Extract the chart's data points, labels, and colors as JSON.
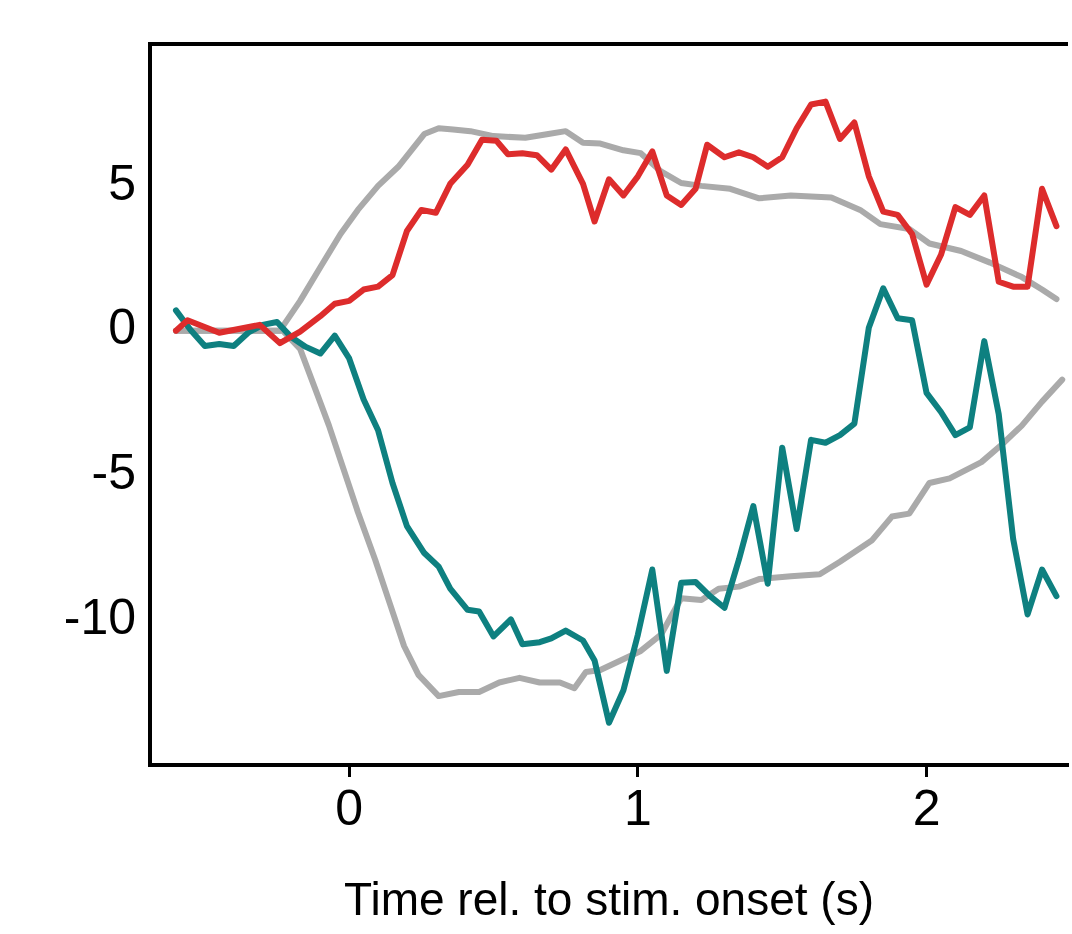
{
  "chart_data": {
    "type": "line",
    "xlabel": "Time rel. to stim. onset (s)",
    "xlim": [
      -0.69,
      2.49
    ],
    "xticks": [
      0,
      1,
      2
    ],
    "ylim": [
      -15,
      9.9
    ],
    "yticks": [
      -10,
      -5,
      0,
      5
    ],
    "grid": false,
    "legend": false,
    "marker": "none",
    "line_style": "solid",
    "series": [
      {
        "color": "#dd2c2c",
        "x": [
          -0.6,
          -0.56,
          -0.45,
          -0.31,
          -0.24,
          -0.17,
          -0.1,
          -0.05,
          0,
          0.05,
          0.1,
          0.15,
          0.2,
          0.25,
          0.3,
          0.35,
          0.41,
          0.46,
          0.51,
          0.55,
          0.6,
          0.65,
          0.7,
          0.75,
          0.81,
          0.85,
          0.9,
          0.95,
          1.0,
          1.05,
          1.1,
          1.15,
          1.2,
          1.24,
          1.3,
          1.35,
          1.4,
          1.45,
          1.5,
          1.55,
          1.6,
          1.65,
          1.7,
          1.75,
          1.8,
          1.85,
          1.9,
          1.95,
          2.0,
          2.05,
          2.1,
          2.15,
          2.2,
          2.25,
          2.3,
          2.35,
          2.4,
          2.45
        ],
        "values": [
          0,
          0.36,
          -0.07,
          0.2,
          -0.43,
          -0.03,
          0.5,
          0.93,
          1.03,
          1.42,
          1.52,
          1.92,
          3.44,
          4.17,
          4.07,
          5.07,
          5.73,
          6.59,
          6.56,
          6.09,
          6.13,
          6.06,
          5.56,
          6.26,
          5.07,
          3.77,
          5.23,
          4.67,
          5.33,
          6.19,
          4.67,
          4.34,
          4.9,
          6.42,
          5.99,
          6.16,
          5.99,
          5.66,
          5.99,
          6.99,
          7.81,
          7.91,
          6.62,
          7.19,
          5.33,
          4.11,
          4.0,
          3.34,
          1.59,
          2.62,
          4.27,
          4.0,
          4.67,
          1.69,
          1.52,
          1.52,
          4.9,
          3.61
        ]
      },
      {
        "color": "#0e8080",
        "x": [
          -0.6,
          -0.55,
          -0.5,
          -0.45,
          -0.4,
          -0.35,
          -0.3,
          -0.25,
          -0.2,
          -0.15,
          -0.1,
          -0.05,
          0,
          0.05,
          0.1,
          0.15,
          0.2,
          0.26,
          0.31,
          0.35,
          0.41,
          0.45,
          0.5,
          0.56,
          0.6,
          0.66,
          0.7,
          0.75,
          0.81,
          0.85,
          0.9,
          0.95,
          1.0,
          1.05,
          1.1,
          1.15,
          1.2,
          1.25,
          1.3,
          1.35,
          1.4,
          1.45,
          1.5,
          1.55,
          1.6,
          1.65,
          1.7,
          1.75,
          1.8,
          1.85,
          1.9,
          1.95,
          2.0,
          2.05,
          2.1,
          2.15,
          2.2,
          2.25,
          2.3,
          2.35,
          2.4,
          2.45
        ],
        "values": [
          0.7,
          0.03,
          -0.53,
          -0.46,
          -0.53,
          -0.07,
          0.2,
          0.3,
          -0.23,
          -0.56,
          -0.79,
          -0.17,
          -0.96,
          -2.38,
          -3.44,
          -5.26,
          -6.75,
          -7.68,
          -8.15,
          -8.91,
          -9.64,
          -9.7,
          -10.56,
          -9.97,
          -10.83,
          -10.76,
          -10.63,
          -10.36,
          -10.7,
          -11.39,
          -13.54,
          -12.42,
          -10.5,
          -8.25,
          -11.75,
          -8.71,
          -8.68,
          -9.17,
          -9.57,
          -7.91,
          -6.06,
          -8.74,
          -4.04,
          -6.85,
          -3.77,
          -3.87,
          -3.61,
          -3.21,
          0.1,
          1.46,
          0.43,
          0.36,
          -2.15,
          -2.81,
          -3.61,
          -3.34,
          -0.36,
          -2.88,
          -7.19,
          -9.8,
          -8.25,
          -9.17
        ]
      },
      {
        "color": "#aaaaaa",
        "x": [
          -0.6,
          -0.24,
          -0.17,
          -0.1,
          -0.03,
          0.03,
          0.1,
          0.17,
          0.26,
          0.31,
          0.36,
          0.42,
          0.5,
          0.61,
          0.69,
          0.75,
          0.81,
          0.87,
          0.95,
          1.01,
          1.08,
          1.15,
          1.22,
          1.32,
          1.42,
          1.53,
          1.67,
          1.77,
          1.84,
          1.94,
          2.01,
          2.12,
          2.22,
          2.33,
          2.4,
          2.45
        ],
        "values": [
          0,
          0,
          1.03,
          2.19,
          3.34,
          4.17,
          5.0,
          5.66,
          6.79,
          6.99,
          6.95,
          6.89,
          6.72,
          6.66,
          6.79,
          6.89,
          6.49,
          6.46,
          6.23,
          6.13,
          5.5,
          5.1,
          5.0,
          4.9,
          4.57,
          4.67,
          4.6,
          4.17,
          3.68,
          3.51,
          3.01,
          2.75,
          2.35,
          1.85,
          1.42,
          1.09
        ]
      },
      {
        "color": "#aaaaaa",
        "x": [
          -0.6,
          -0.23,
          -0.17,
          -0.12,
          -0.07,
          -0.02,
          0.03,
          0.09,
          0.14,
          0.19,
          0.24,
          0.31,
          0.38,
          0.45,
          0.52,
          0.59,
          0.66,
          0.73,
          0.78,
          0.82,
          0.87,
          0.94,
          1.01,
          1.08,
          1.15,
          1.22,
          1.28,
          1.35,
          1.42,
          1.53,
          1.63,
          1.7,
          1.81,
          1.88,
          1.94,
          2.01,
          2.08,
          2.19,
          2.26,
          2.33,
          2.4,
          2.47
        ],
        "values": [
          0,
          0,
          -0.63,
          -1.95,
          -3.28,
          -4.77,
          -6.26,
          -7.91,
          -9.4,
          -10.89,
          -11.89,
          -12.62,
          -12.48,
          -12.48,
          -12.15,
          -11.99,
          -12.15,
          -12.15,
          -12.35,
          -11.79,
          -11.72,
          -11.39,
          -11.06,
          -10.5,
          -9.24,
          -9.3,
          -8.91,
          -8.84,
          -8.58,
          -8.48,
          -8.41,
          -7.98,
          -7.25,
          -6.42,
          -6.32,
          -5.26,
          -5.1,
          -4.54,
          -3.94,
          -3.28,
          -2.45,
          -1.69
        ]
      }
    ]
  }
}
